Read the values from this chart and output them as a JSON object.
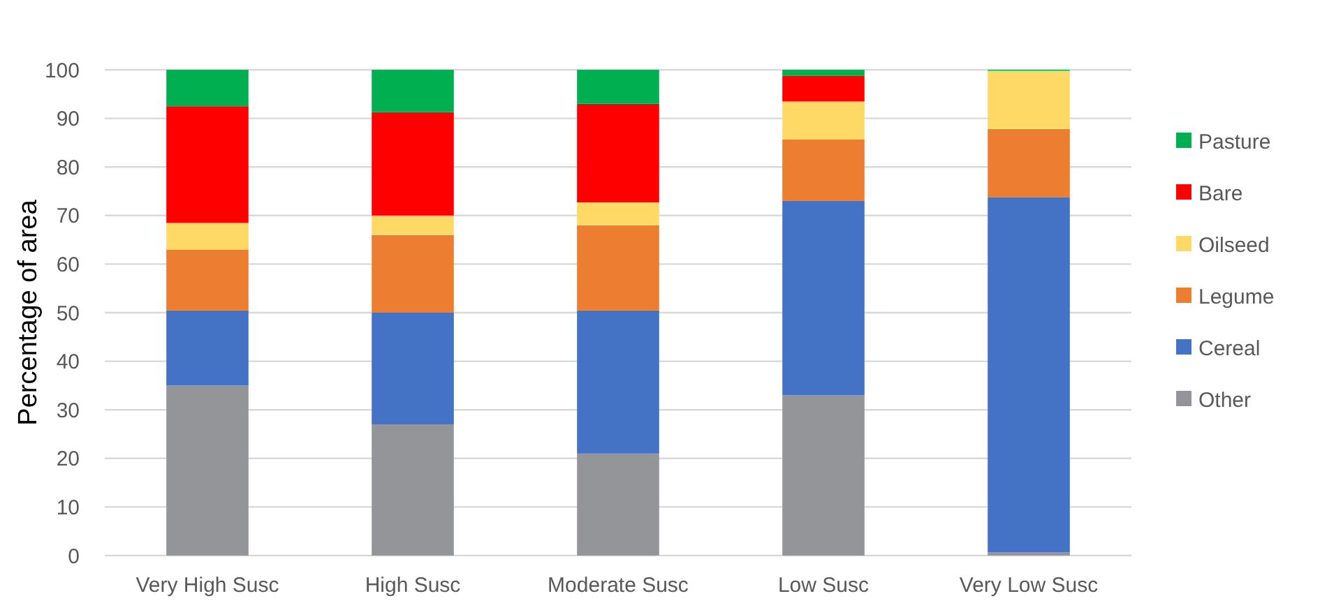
{
  "chart_data": {
    "type": "bar",
    "stacked": true,
    "ylabel": "Percentage of area",
    "categories": [
      "Very High Susc",
      "High Susc",
      "Moderate Susc",
      "Low Susc",
      "Very Low Susc"
    ],
    "series": [
      {
        "name": "Other",
        "color": "#939598",
        "values": [
          35,
          27,
          21,
          33,
          0.7
        ]
      },
      {
        "name": "Cereal",
        "color": "#4472c4",
        "values": [
          15.5,
          23,
          29.5,
          40,
          73.1
        ]
      },
      {
        "name": "Legume",
        "color": "#ed7d31",
        "values": [
          12.5,
          16,
          17.5,
          12.7,
          14
        ]
      },
      {
        "name": "Oilseed",
        "color": "#ffd966",
        "values": [
          5.5,
          4,
          4.7,
          7.8,
          12
        ]
      },
      {
        "name": "Bare",
        "color": "#ff0000",
        "values": [
          24,
          21.3,
          20.3,
          5.3,
          0
        ]
      },
      {
        "name": "Pasture",
        "color": "#00b050",
        "values": [
          7.5,
          8.7,
          7,
          1.2,
          0.2
        ]
      }
    ],
    "ylim": [
      0,
      100
    ],
    "yticks": [
      0,
      10,
      20,
      30,
      40,
      50,
      60,
      70,
      80,
      90,
      100
    ],
    "grid": "y",
    "legend": "right"
  }
}
